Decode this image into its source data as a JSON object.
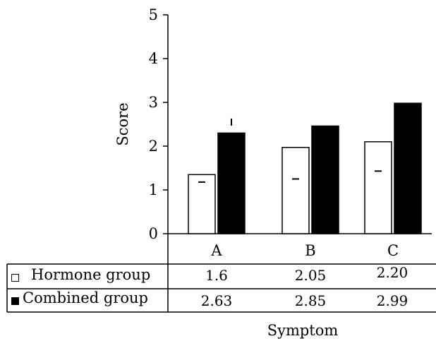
{
  "chart_data": {
    "type": "bar",
    "categories": [
      "A",
      "B",
      "C"
    ],
    "series": [
      {
        "name": "Hormone group",
        "values": [
          1.35,
          1.97,
          2.1
        ],
        "table_values": [
          "1.6",
          "2.05",
          "2.20"
        ],
        "fill": "#ffffff",
        "stroke": "#000000"
      },
      {
        "name": "Combined group",
        "values": [
          2.3,
          2.46,
          2.98
        ],
        "table_values": [
          "2.63",
          "2.85",
          "2.99"
        ],
        "fill": "#000000",
        "stroke": "#000000"
      }
    ],
    "ylabel": "Score",
    "xlabel": "Symptom",
    "ylim": [
      0,
      5
    ],
    "yticks": [
      "0",
      "1",
      "2",
      "3",
      "4",
      "5"
    ],
    "markers": [
      {
        "category": "A",
        "series": 0,
        "value": 1.18,
        "shape": "dash"
      },
      {
        "category": "A",
        "series": 1,
        "value": 2.55,
        "shape": "tick"
      },
      {
        "category": "B",
        "series": 0,
        "value": 1.25,
        "shape": "dash"
      },
      {
        "category": "C",
        "series": 0,
        "value": 1.43,
        "shape": "dash"
      }
    ],
    "legend_placement": "table-left",
    "grid": false
  }
}
